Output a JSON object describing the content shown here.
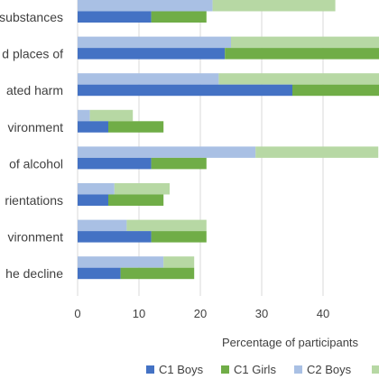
{
  "chart_data": {
    "type": "bar",
    "orientation": "horizontal",
    "stacked": true,
    "categories": [
      "substances",
      "d places of",
      "ated harm",
      "vironment",
      "of alcohol",
      "rientations",
      "vironment",
      "he decline"
    ],
    "series": [
      {
        "name": "C1 Boys",
        "color": "#4472C4",
        "group": "C1",
        "values": [
          12,
          24,
          35,
          5,
          12,
          5,
          12,
          7
        ]
      },
      {
        "name": "C1 Girls",
        "color": "#70AD47",
        "group": "C1",
        "values": [
          9,
          40,
          20,
          9,
          9,
          9,
          9,
          12
        ]
      },
      {
        "name": "C2 Boys",
        "color": "#A9C0E4",
        "group": "C2",
        "values": [
          22,
          25,
          23,
          2,
          29,
          6,
          8,
          14
        ]
      },
      {
        "name": "",
        "color": "#B7D8A4",
        "group": "C2",
        "values": [
          20,
          30,
          30,
          7,
          20,
          9,
          13,
          5
        ]
      }
    ],
    "xlabel": "Percentage of participants",
    "ylabel": "",
    "xticks": [
      0,
      10,
      20,
      30,
      40
    ],
    "xlim": [
      0,
      48
    ],
    "grid": true,
    "legend": "bottom"
  }
}
